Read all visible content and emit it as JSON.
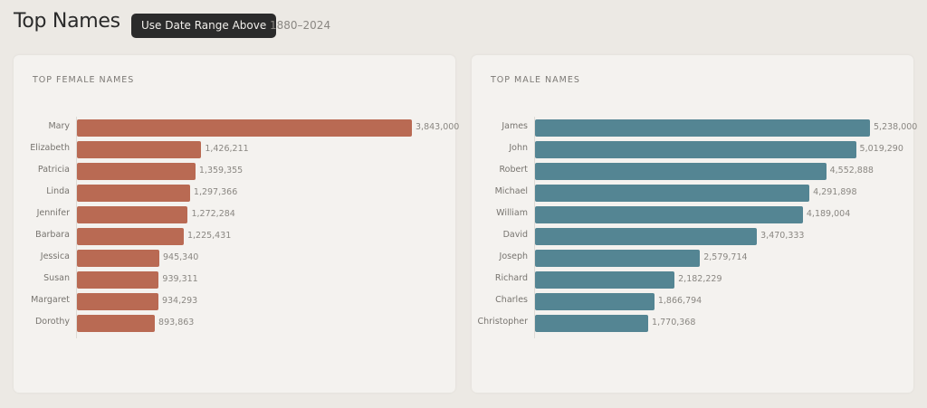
{
  "header": {
    "title": "Top Names",
    "button_label": "Use Date Range Above",
    "range": "1880–2024"
  },
  "colors": {
    "female": "#b96a53",
    "male": "#548593"
  },
  "chart_data": [
    {
      "type": "bar",
      "orientation": "horizontal",
      "title": "TOP FEMALE NAMES",
      "categories": [
        "Mary",
        "Elizabeth",
        "Patricia",
        "Linda",
        "Jennifer",
        "Barbara",
        "Jessica",
        "Susan",
        "Margaret",
        "Dorothy"
      ],
      "values": [
        3843000,
        1426211,
        1359355,
        1297366,
        1272284,
        1225431,
        945340,
        939311,
        934293,
        893863
      ],
      "labels": [
        "3,843,000",
        "1,426,211",
        "1,359,355",
        "1,297,366",
        "1,272,284",
        "1,225,431",
        "945,340",
        "939,311",
        "934,293",
        "893,863"
      ]
    },
    {
      "type": "bar",
      "orientation": "horizontal",
      "title": "TOP MALE NAMES",
      "categories": [
        "James",
        "John",
        "Robert",
        "Michael",
        "William",
        "David",
        "Joseph",
        "Richard",
        "Charles",
        "Christopher"
      ],
      "values": [
        5238000,
        5019290,
        4552888,
        4291898,
        4189004,
        3470333,
        2579714,
        2182229,
        1866794,
        1770368
      ],
      "labels": [
        "5,238,000",
        "5,019,290",
        "4,552,888",
        "4,291,898",
        "4,189,004",
        "3,470,333",
        "2,579,714",
        "2,182,229",
        "1,866,794",
        "1,770,368"
      ]
    }
  ]
}
